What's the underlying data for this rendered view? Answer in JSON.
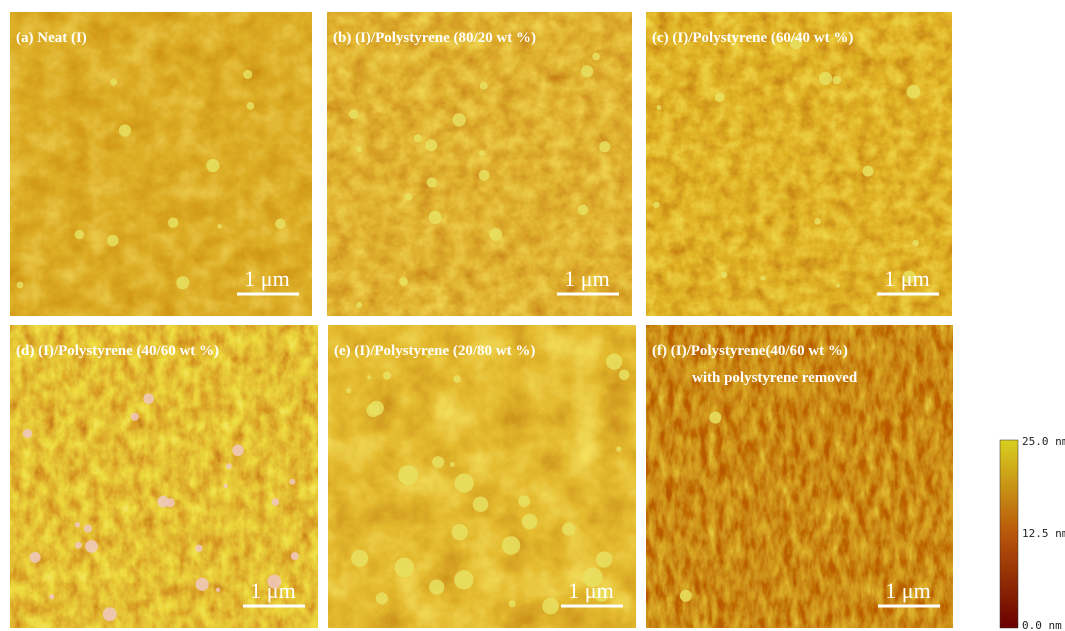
{
  "panels": [
    {
      "label": "(a)  Neat (I)",
      "scale_bar": "1 μm"
    },
    {
      "label": "(b)  (I)/Polystyrene (80/20 wt %)",
      "scale_bar": "1 μm"
    },
    {
      "label": "(c)  (I)/Polystyrene (60/40 wt %)",
      "scale_bar": "1 μm"
    },
    {
      "label": "(d)  (I)/Polystyrene (40/60 wt %)",
      "scale_bar": "1 μm"
    },
    {
      "label": "(e)  (I)/Polystyrene (20/80 wt %)",
      "scale_bar": "1 μm"
    },
    {
      "label": "(f)  (I)/Polystyrene(40/60 wt %)",
      "label_line2": "with polystyrene removed",
      "scale_bar": "1 μm"
    }
  ],
  "colorbar": {
    "max_label": "25.0 nm",
    "mid_label": "12.5 nm",
    "min_label": "0.0 nm"
  }
}
